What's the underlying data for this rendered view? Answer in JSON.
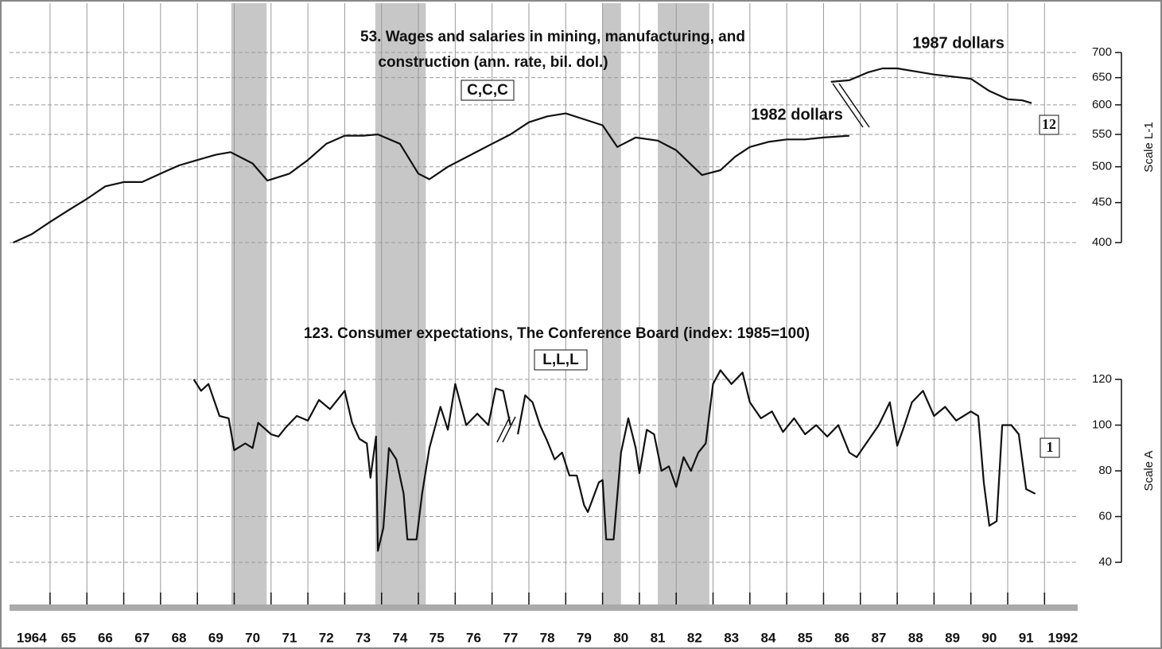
{
  "chart_data": [
    {
      "type": "line",
      "title_lines": [
        "53. Wages and salaries in mining, manufacturing, and",
        "construction (ann. rate, bil. dol.)"
      ],
      "code": "C,C,C",
      "badge": "12",
      "axis_label": "Scale L-1",
      "log": true,
      "ylim": [
        400,
        700
      ],
      "yticks": [
        400,
        450,
        500,
        550,
        600,
        650,
        700
      ],
      "xlim": [
        1963.9,
        1992.9
      ],
      "recessions": [
        [
          1969.92,
          1970.88
        ],
        [
          1973.83,
          1975.2
        ],
        [
          1980.0,
          1980.5
        ],
        [
          1981.5,
          1982.9
        ]
      ],
      "series": [
        {
          "name": "1982 dollars",
          "color": "#111111",
          "x": [
            1964.0,
            1964.5,
            1965.0,
            1965.5,
            1966.0,
            1966.5,
            1967.0,
            1967.5,
            1968.0,
            1968.5,
            1969.0,
            1969.5,
            1969.9,
            1970.5,
            1970.9,
            1971.5,
            1972.0,
            1972.5,
            1973.0,
            1973.5,
            1973.9,
            1974.5,
            1975.0,
            1975.3,
            1975.8,
            1976.5,
            1977.0,
            1977.5,
            1978.0,
            1978.5,
            1979.0,
            1979.5,
            1980.0,
            1980.4,
            1980.9,
            1981.5,
            1982.0,
            1982.7,
            1983.2,
            1983.6,
            1984.0,
            1984.5,
            1985.0,
            1985.5,
            1986.0,
            1986.7
          ],
          "values": [
            400,
            410,
            425,
            440,
            455,
            472,
            478,
            478,
            490,
            502,
            510,
            518,
            522,
            505,
            480,
            490,
            510,
            535,
            548,
            548,
            550,
            535,
            490,
            482,
            500,
            520,
            535,
            550,
            570,
            580,
            585,
            575,
            565,
            530,
            545,
            540,
            525,
            488,
            495,
            515,
            530,
            538,
            542,
            542,
            545,
            548
          ]
        },
        {
          "name": "1987 dollars",
          "color": "#111111",
          "x": [
            1986.2,
            1986.7,
            1987.2,
            1987.6,
            1988.0,
            1988.5,
            1989.0,
            1989.5,
            1990.0,
            1990.5,
            1991.0,
            1991.4,
            1991.65
          ],
          "values": [
            642,
            645,
            660,
            668,
            668,
            662,
            656,
            652,
            648,
            625,
            610,
            608,
            603
          ]
        }
      ]
    },
    {
      "type": "line",
      "title_lines": [
        "123. Consumer expectations, The Conference Board (index: 1985=100)"
      ],
      "code": "L,L,L",
      "badge": "1",
      "axis_label": "Scale A",
      "log": false,
      "ylim": [
        40,
        120
      ],
      "yticks": [
        40,
        60,
        80,
        100,
        120
      ],
      "xlim": [
        1963.9,
        1992.9
      ],
      "xgrid": [
        1965,
        1966,
        1967,
        1968,
        1969,
        1970,
        1971,
        1972,
        1973,
        1974,
        1975,
        1976,
        1977,
        1978,
        1979,
        1980,
        1981,
        1982,
        1983,
        1984,
        1985,
        1986,
        1987,
        1988,
        1989,
        1990,
        1991,
        1992
      ],
      "xticks": [
        {
          "value": 1964.5,
          "label": "1964"
        },
        {
          "value": 1965.5,
          "label": "65"
        },
        {
          "value": 1966.5,
          "label": "66"
        },
        {
          "value": 1967.5,
          "label": "67"
        },
        {
          "value": 1968.5,
          "label": "68"
        },
        {
          "value": 1969.5,
          "label": "69"
        },
        {
          "value": 1970.5,
          "label": "70"
        },
        {
          "value": 1971.5,
          "label": "71"
        },
        {
          "value": 1972.5,
          "label": "72"
        },
        {
          "value": 1973.5,
          "label": "73"
        },
        {
          "value": 1974.5,
          "label": "74"
        },
        {
          "value": 1975.5,
          "label": "75"
        },
        {
          "value": 1976.5,
          "label": "76"
        },
        {
          "value": 1977.5,
          "label": "77"
        },
        {
          "value": 1978.5,
          "label": "78"
        },
        {
          "value": 1979.5,
          "label": "79"
        },
        {
          "value": 1980.5,
          "label": "80"
        },
        {
          "value": 1981.5,
          "label": "81"
        },
        {
          "value": 1982.5,
          "label": "82"
        },
        {
          "value": 1983.5,
          "label": "83"
        },
        {
          "value": 1984.5,
          "label": "84"
        },
        {
          "value": 1985.5,
          "label": "85"
        },
        {
          "value": 1986.5,
          "label": "86"
        },
        {
          "value": 1987.5,
          "label": "87"
        },
        {
          "value": 1988.5,
          "label": "88"
        },
        {
          "value": 1989.5,
          "label": "89"
        },
        {
          "value": 1990.5,
          "label": "90"
        },
        {
          "value": 1991.5,
          "label": "91"
        },
        {
          "value": 1992.5,
          "label": "1992"
        }
      ],
      "series": [
        {
          "name": "Consumer expectations",
          "color": "#111111",
          "x": [
            1968.9,
            1969.1,
            1969.3,
            1969.6,
            1969.85,
            1970.0,
            1970.3,
            1970.5,
            1970.65,
            1971.0,
            1971.2,
            1971.4,
            1971.7,
            1972.0,
            1972.3,
            1972.6,
            1973.0,
            1973.2,
            1973.4,
            1973.6,
            1973.7,
            1973.85,
            1973.9,
            1974.05,
            1974.2,
            1974.4,
            1974.6,
            1974.7,
            1974.95,
            1975.1,
            1975.3,
            1975.6,
            1975.8,
            1976.0,
            1976.3,
            1976.6,
            1976.9,
            1977.1,
            1977.3,
            1977.5,
            1977.6,
            1977.7,
            1977.9,
            1978.1,
            1978.3,
            1978.5,
            1978.7,
            1978.9,
            1979.1,
            1979.3,
            1979.5,
            1979.6,
            1979.9,
            1980.0,
            1980.1,
            1980.3,
            1980.5,
            1980.7,
            1980.9,
            1981.0,
            1981.2,
            1981.4,
            1981.6,
            1981.8,
            1982.0,
            1982.2,
            1982.4,
            1982.6,
            1982.8,
            1983.0,
            1983.2,
            1983.5,
            1983.8,
            1984.0,
            1984.3,
            1984.6,
            1984.9,
            1985.2,
            1985.5,
            1985.8,
            1986.1,
            1986.4,
            1986.7,
            1986.9,
            1987.2,
            1987.5,
            1987.8,
            1988.0,
            1988.2,
            1988.4,
            1988.7,
            1989.0,
            1989.3,
            1989.6,
            1990.0,
            1990.2,
            1990.35,
            1990.5,
            1990.7,
            1990.85,
            1991.1,
            1991.3,
            1991.5,
            1991.75
          ],
          "values": [
            120,
            115,
            118,
            104,
            103,
            89,
            92,
            90,
            101,
            96,
            95,
            99,
            104,
            102,
            111,
            107,
            115,
            101,
            94,
            92,
            77,
            95,
            45,
            55,
            90,
            85,
            70,
            50,
            50,
            70,
            90,
            108,
            98,
            118,
            100,
            105,
            100,
            116,
            115,
            100,
            null,
            96,
            113,
            110,
            100,
            93,
            85,
            88,
            78,
            78,
            65,
            62,
            75,
            76,
            50,
            50,
            88,
            103,
            90,
            79,
            98,
            96,
            80,
            82,
            73,
            86,
            80,
            88,
            92,
            118,
            124,
            118,
            123,
            110,
            103,
            106,
            97,
            103,
            96,
            100,
            95,
            100,
            88,
            86,
            93,
            100,
            110,
            91,
            100,
            110,
            115,
            104,
            108,
            102,
            106,
            104,
            75,
            56,
            58,
            100,
            100,
            96,
            72,
            70
          ]
        }
      ]
    }
  ]
}
